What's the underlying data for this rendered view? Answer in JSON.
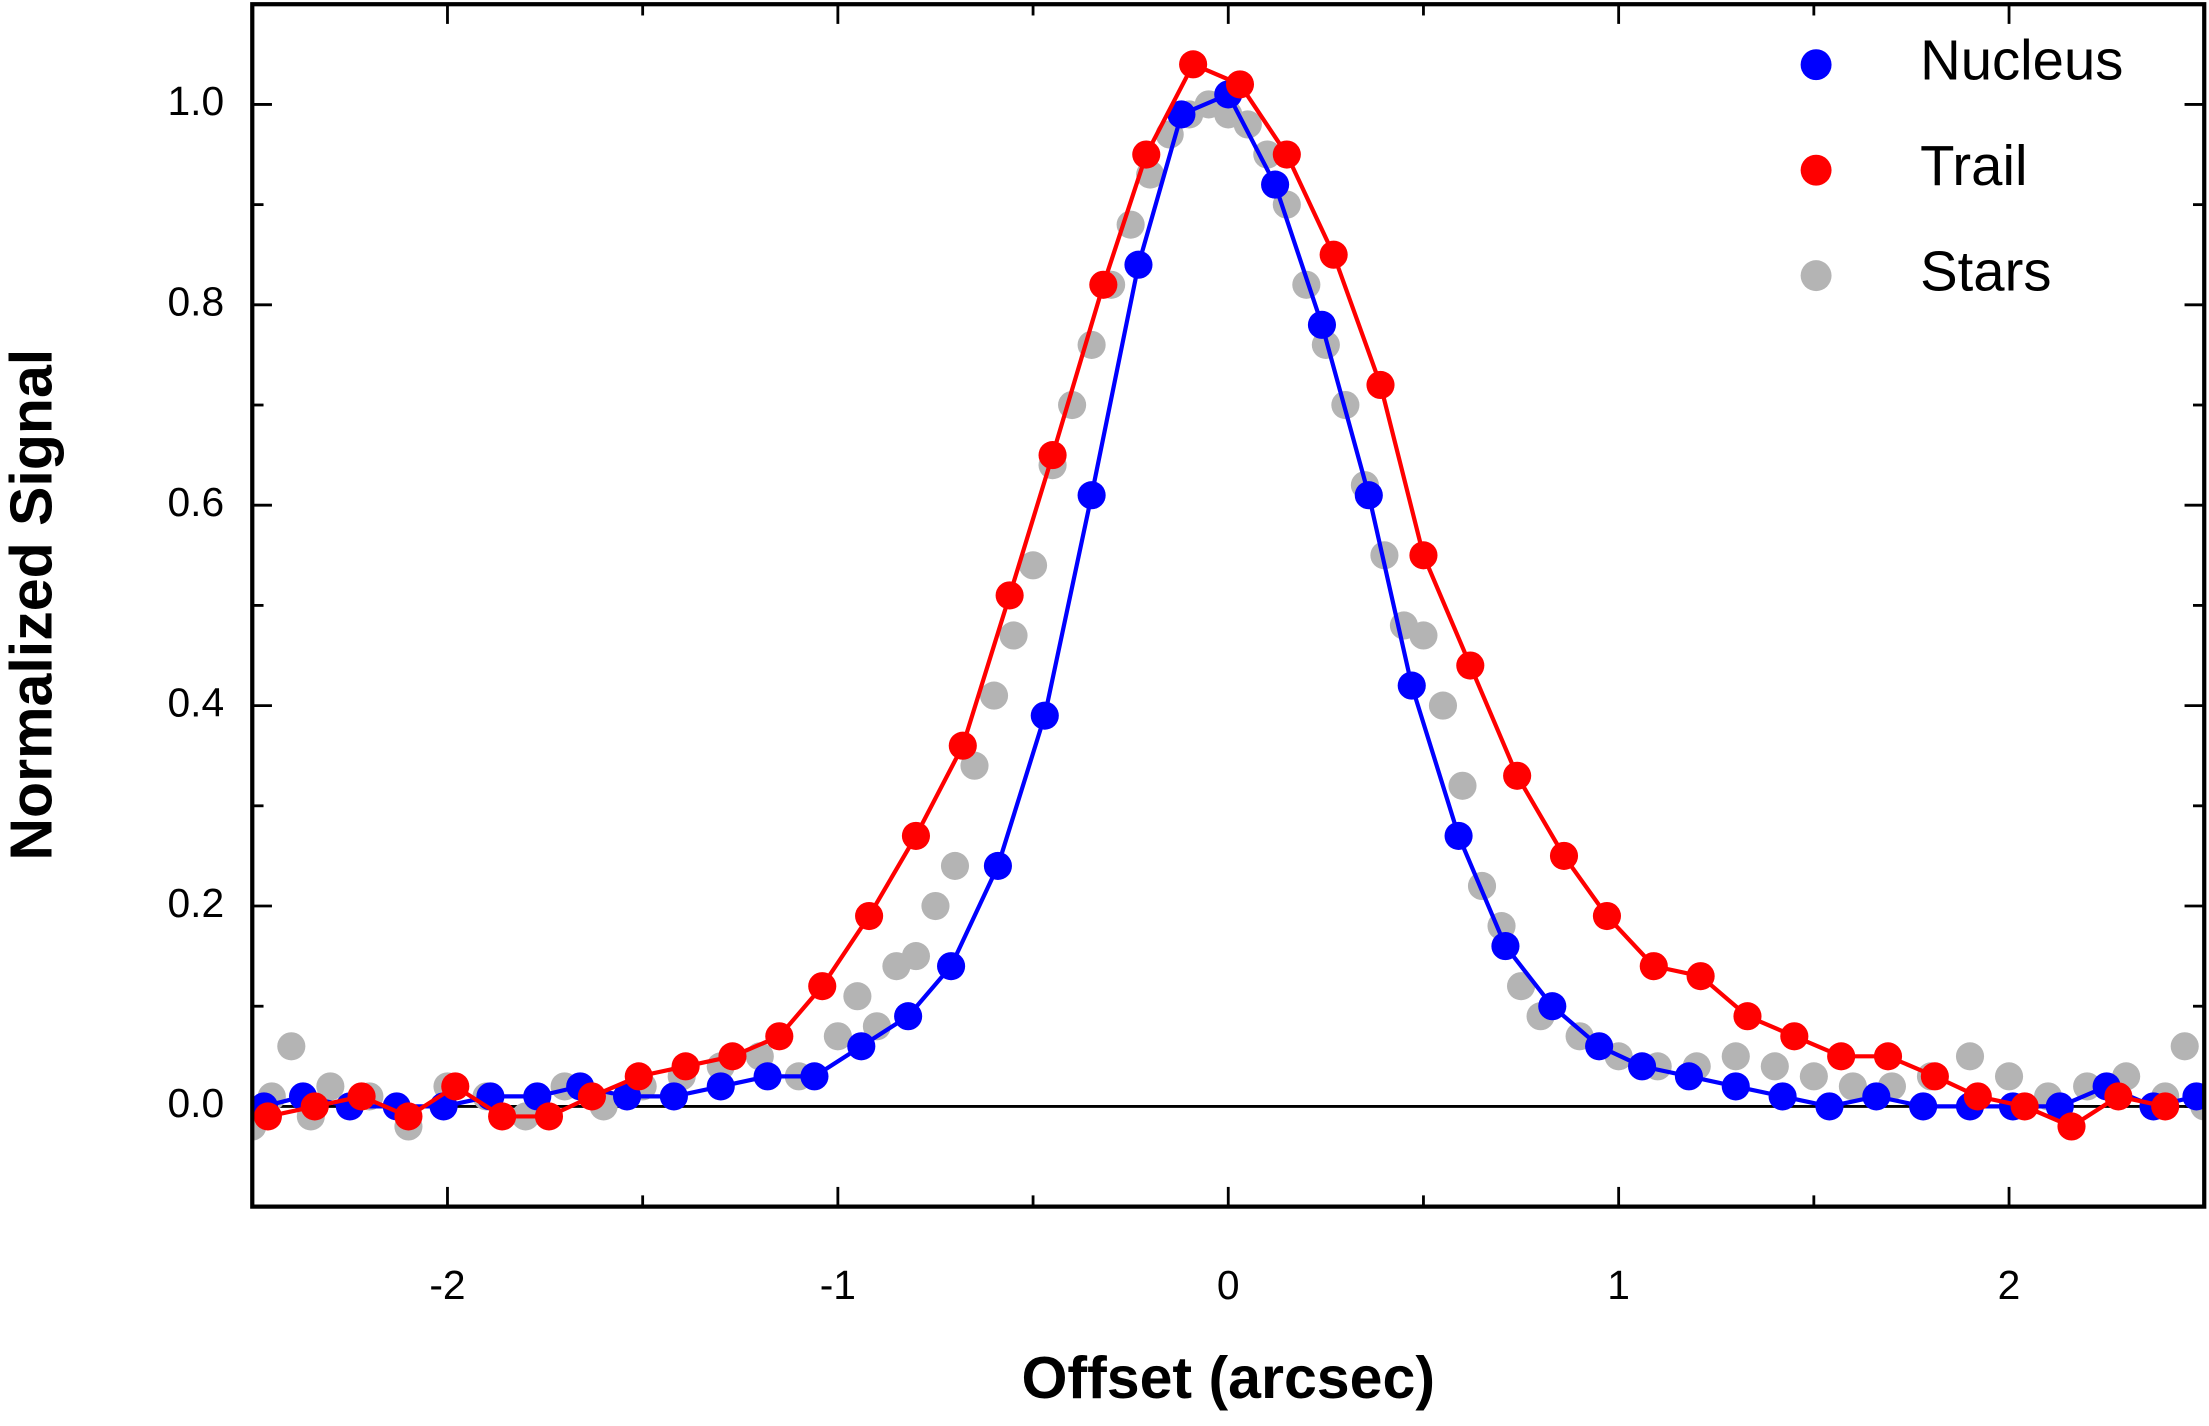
{
  "chart_data": {
    "type": "line",
    "x_label": "Offset  (arcsec)",
    "y_label": "Normalized Signal",
    "xlim": [
      -2.5,
      2.5
    ],
    "ylim": [
      -0.1,
      1.1
    ],
    "xticks": [
      -2,
      -1,
      0,
      1,
      2
    ],
    "xminorticks": [
      -1.5,
      -0.5,
      0.5,
      1.5
    ],
    "yticks": [
      {
        "value": 0,
        "label": "0.0"
      },
      {
        "value": 0.2,
        "label": "0.2"
      },
      {
        "value": 0.4,
        "label": "0.4"
      },
      {
        "value": 0.6,
        "label": "0.6"
      },
      {
        "value": 0.8,
        "label": "0.8"
      },
      {
        "value": 1,
        "label": "1.0"
      }
    ],
    "yminorticks": [
      -0.1,
      0.1,
      0.3,
      0.5,
      0.7,
      0.9,
      1.1
    ],
    "legend": "upper right",
    "series": [
      {
        "name": "Nucleus",
        "color": "#0000ff",
        "line": true,
        "x": [
          -2.47,
          -2.37,
          -2.25,
          -2.13,
          -2.01,
          -1.89,
          -1.77,
          -1.66,
          -1.54,
          -1.42,
          -1.3,
          -1.18,
          -1.06,
          -0.94,
          -0.82,
          -0.71,
          -0.59,
          -0.47,
          -0.35,
          -0.23,
          -0.12,
          0.0,
          0.12,
          0.24,
          0.36,
          0.47,
          0.59,
          0.71,
          0.83,
          0.95,
          1.06,
          1.18,
          1.3,
          1.42,
          1.54,
          1.66,
          1.78,
          1.9,
          2.01,
          2.13,
          2.25,
          2.37,
          2.48
        ],
        "values": [
          0.0,
          0.01,
          0.0,
          0.0,
          0.0,
          0.01,
          0.01,
          0.02,
          0.01,
          0.01,
          0.02,
          0.03,
          0.03,
          0.06,
          0.09,
          0.14,
          0.24,
          0.39,
          0.61,
          0.84,
          0.99,
          1.01,
          0.92,
          0.78,
          0.61,
          0.42,
          0.27,
          0.16,
          0.1,
          0.06,
          0.04,
          0.03,
          0.02,
          0.01,
          0.0,
          0.01,
          0.0,
          0.0,
          0.0,
          0.0,
          0.02,
          0.0,
          0.01
        ]
      },
      {
        "name": "Trail",
        "color": "#ff0000",
        "line": true,
        "x": [
          -2.46,
          -2.34,
          -2.22,
          -2.1,
          -1.98,
          -1.86,
          -1.74,
          -1.63,
          -1.51,
          -1.39,
          -1.27,
          -1.15,
          -1.04,
          -0.92,
          -0.8,
          -0.68,
          -0.56,
          -0.45,
          -0.32,
          -0.21,
          -0.09,
          0.03,
          0.15,
          0.27,
          0.39,
          0.5,
          0.62,
          0.74,
          0.86,
          0.97,
          1.09,
          1.21,
          1.33,
          1.45,
          1.57,
          1.69,
          1.81,
          1.92,
          2.04,
          2.16,
          2.28,
          2.4
        ],
        "values": [
          -0.01,
          0.0,
          0.01,
          -0.01,
          0.02,
          -0.01,
          -0.01,
          0.01,
          0.03,
          0.04,
          0.05,
          0.07,
          0.12,
          0.19,
          0.27,
          0.36,
          0.51,
          0.65,
          0.82,
          0.95,
          1.04,
          1.02,
          0.95,
          0.85,
          0.72,
          0.55,
          0.44,
          0.33,
          0.25,
          0.19,
          0.14,
          0.13,
          0.09,
          0.07,
          0.05,
          0.05,
          0.03,
          0.01,
          0.0,
          -0.02,
          0.01,
          0.0
        ]
      },
      {
        "name": "Stars",
        "color": "#b4b4b4",
        "line": false,
        "x": [
          -2.5,
          -2.45,
          -2.4,
          -2.35,
          -2.3,
          -2.2,
          -2.1,
          -2.0,
          -1.9,
          -1.8,
          -1.7,
          -1.6,
          -1.5,
          -1.4,
          -1.3,
          -1.2,
          -1.1,
          -1.0,
          -0.95,
          -0.9,
          -0.85,
          -0.8,
          -0.75,
          -0.7,
          -0.65,
          -0.6,
          -0.55,
          -0.5,
          -0.45,
          -0.4,
          -0.35,
          -0.3,
          -0.25,
          -0.2,
          -0.15,
          -0.1,
          -0.05,
          0.0,
          0.05,
          0.1,
          0.15,
          0.2,
          0.25,
          0.3,
          0.35,
          0.4,
          0.45,
          0.5,
          0.55,
          0.6,
          0.65,
          0.7,
          0.75,
          0.8,
          0.9,
          1.0,
          1.1,
          1.2,
          1.3,
          1.4,
          1.5,
          1.6,
          1.7,
          1.8,
          1.9,
          2.0,
          2.1,
          2.2,
          2.3,
          2.4,
          2.45,
          2.5
        ],
        "values": [
          -0.02,
          0.01,
          0.06,
          -0.01,
          0.02,
          0.01,
          -0.02,
          0.02,
          0.01,
          -0.01,
          0.02,
          0.0,
          0.02,
          0.03,
          0.04,
          0.05,
          0.03,
          0.07,
          0.11,
          0.08,
          0.14,
          0.15,
          0.2,
          0.24,
          0.34,
          0.41,
          0.47,
          0.54,
          0.64,
          0.7,
          0.76,
          0.82,
          0.88,
          0.93,
          0.97,
          0.99,
          1.0,
          0.99,
          0.98,
          0.95,
          0.9,
          0.82,
          0.76,
          0.7,
          0.62,
          0.55,
          0.48,
          0.47,
          0.4,
          0.32,
          0.22,
          0.18,
          0.12,
          0.09,
          0.07,
          0.05,
          0.04,
          0.04,
          0.05,
          0.04,
          0.03,
          0.02,
          0.02,
          0.03,
          0.05,
          0.03,
          0.01,
          0.02,
          0.03,
          0.01,
          0.06,
          0.0
        ]
      }
    ]
  }
}
